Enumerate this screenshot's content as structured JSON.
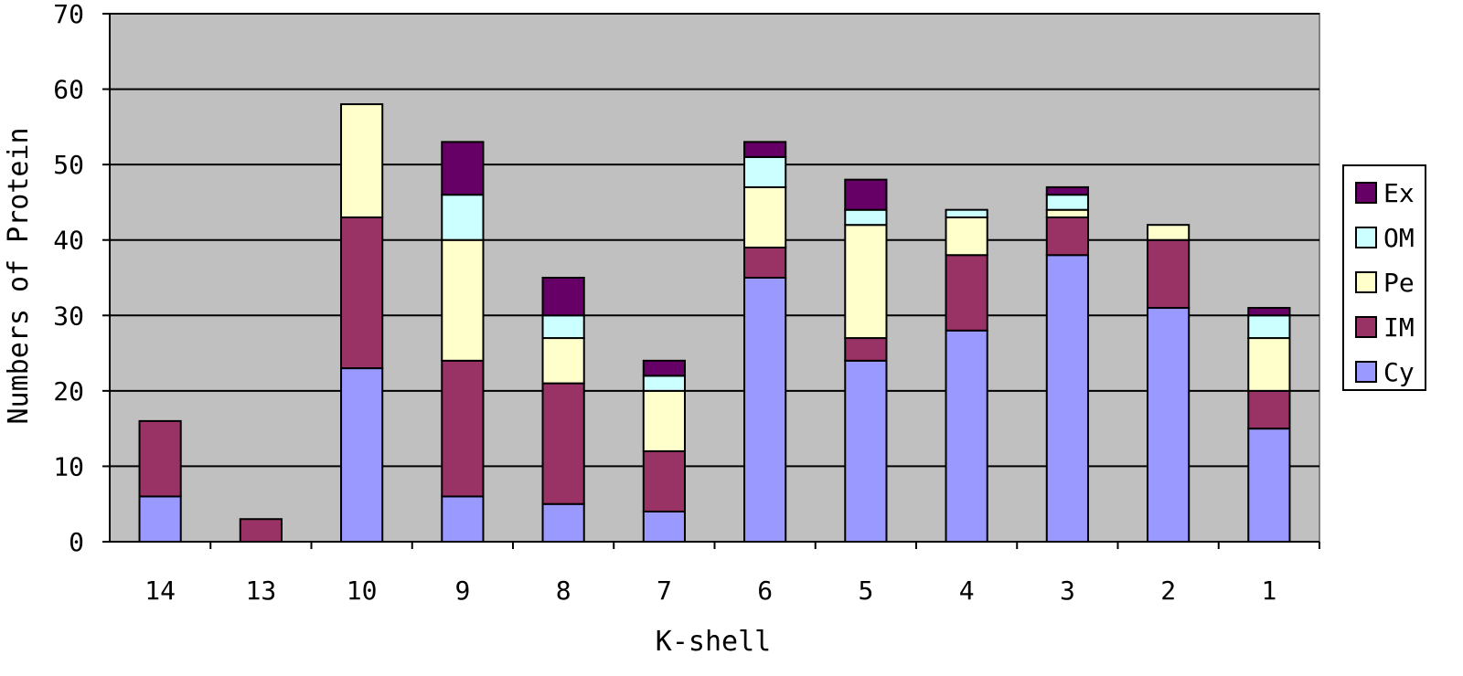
{
  "chart_data": {
    "type": "bar",
    "stacked": true,
    "xlabel": "K-shell",
    "ylabel": "Numbers of Protein",
    "ylim": [
      0,
      70
    ],
    "yticks": [
      "0",
      "10",
      "20",
      "30",
      "40",
      "50",
      "60",
      "70"
    ],
    "grid": true,
    "legend_position": "right",
    "categories": [
      "14",
      "13",
      "10",
      "9",
      "8",
      "7",
      "6",
      "5",
      "4",
      "3",
      "2",
      "1"
    ],
    "series": [
      {
        "name": "Cy",
        "color": "#9999ff",
        "values": [
          6,
          0,
          23,
          6,
          5,
          4,
          35,
          24,
          28,
          38,
          31,
          15
        ]
      },
      {
        "name": "IM",
        "color": "#993366",
        "values": [
          10,
          3,
          20,
          18,
          16,
          8,
          4,
          3,
          10,
          5,
          9,
          5
        ]
      },
      {
        "name": "Pe",
        "color": "#ffffcc",
        "values": [
          0,
          0,
          15,
          16,
          6,
          8,
          8,
          15,
          5,
          1,
          2,
          7
        ]
      },
      {
        "name": "OM",
        "color": "#ccffff",
        "values": [
          0,
          0,
          0,
          6,
          3,
          2,
          4,
          2,
          1,
          2,
          0,
          3
        ]
      },
      {
        "name": "Ex",
        "color": "#660066",
        "values": [
          0,
          0,
          0,
          7,
          5,
          2,
          2,
          4,
          0,
          1,
          0,
          1
        ]
      }
    ],
    "legend_order": [
      "Ex",
      "OM",
      "Pe",
      "IM",
      "Cy"
    ],
    "plot_background": "#c0c0c0"
  }
}
